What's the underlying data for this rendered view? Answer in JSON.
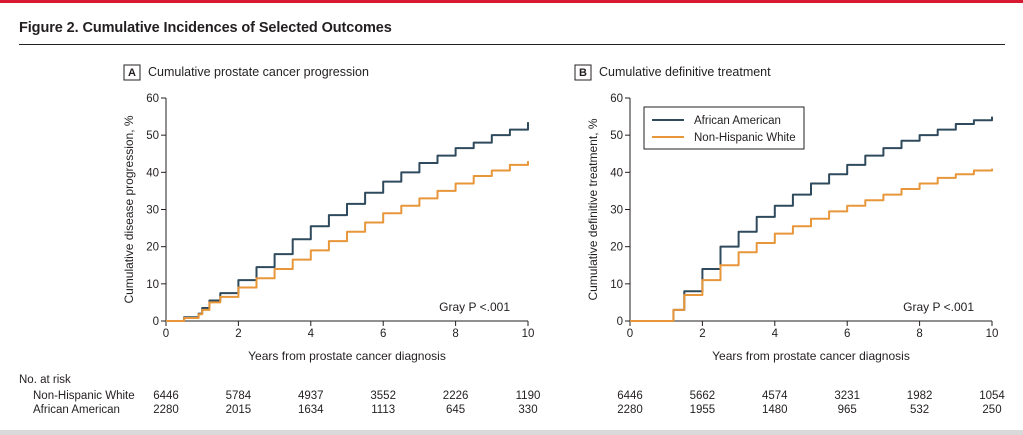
{
  "figure_title": "Figure 2. Cumulative Incidences of Selected Outcomes",
  "risk_table": {
    "header": "No. at risk",
    "rows": [
      "Non-Hispanic White",
      "African American"
    ]
  },
  "chart_data": [
    {
      "type": "line",
      "panel_letter": "A",
      "title": "Cumulative prostate cancer progression",
      "xlabel": "Years from prostate cancer diagnosis",
      "ylabel": "Cumulative disease progression, %",
      "xlim": [
        0,
        10
      ],
      "ylim": [
        0,
        60
      ],
      "x_ticks": [
        0,
        2,
        4,
        6,
        8,
        10
      ],
      "y_ticks": [
        0,
        10,
        20,
        30,
        40,
        50,
        60
      ],
      "annotation": "Gray P <.001",
      "legend": false,
      "series": [
        {
          "name": "African American",
          "color": "#2e4a5c",
          "x": [
            0,
            0.5,
            0.9,
            1.0,
            1.2,
            1.5,
            2.0,
            2.5,
            3.0,
            3.5,
            4.0,
            4.5,
            5.0,
            5.5,
            6.0,
            6.5,
            7.0,
            7.5,
            8.0,
            8.5,
            9.0,
            9.5,
            10.0
          ],
          "y": [
            0,
            1.0,
            2.0,
            3.5,
            5.5,
            7.5,
            11,
            14.5,
            18,
            22,
            25.5,
            28.5,
            31.5,
            34.5,
            37.5,
            40,
            42.5,
            44.5,
            46.5,
            48,
            50,
            51.5,
            53.5
          ]
        },
        {
          "name": "Non-Hispanic White",
          "color": "#e8963a",
          "x": [
            0,
            0.5,
            0.9,
            1.0,
            1.2,
            1.5,
            2.0,
            2.5,
            3.0,
            3.5,
            4.0,
            4.5,
            5.0,
            5.5,
            6.0,
            6.5,
            7.0,
            7.5,
            8.0,
            8.5,
            9.0,
            9.5,
            10.0
          ],
          "y": [
            0,
            0.8,
            1.8,
            3.0,
            5.0,
            6.5,
            9.0,
            11.5,
            14,
            16.5,
            19,
            21.5,
            24,
            26.5,
            29,
            31,
            33,
            35,
            37,
            39,
            40.5,
            42,
            43
          ]
        }
      ],
      "at_risk": {
        "Non-Hispanic White": [
          6446,
          5784,
          4937,
          3552,
          2226,
          1190
        ],
        "African American": [
          2280,
          2015,
          1634,
          1113,
          645,
          330
        ]
      }
    },
    {
      "type": "line",
      "panel_letter": "B",
      "title": "Cumulative definitive treatment",
      "xlabel": "Years from prostate cancer diagnosis",
      "ylabel": "Cumulative definitive treatment, %",
      "xlim": [
        0,
        10
      ],
      "ylim": [
        0,
        60
      ],
      "x_ticks": [
        0,
        2,
        4,
        6,
        8,
        10
      ],
      "y_ticks": [
        0,
        10,
        20,
        30,
        40,
        50,
        60
      ],
      "annotation": "Gray P <.001",
      "legend": true,
      "legend_position": "top-left",
      "series": [
        {
          "name": "African American",
          "color": "#2e4a5c",
          "x": [
            0,
            1.0,
            1.2,
            1.5,
            2.0,
            2.5,
            3.0,
            3.5,
            4.0,
            4.5,
            5.0,
            5.5,
            6.0,
            6.5,
            7.0,
            7.5,
            8.0,
            8.5,
            9.0,
            9.5,
            10.0
          ],
          "y": [
            0,
            0,
            3,
            8,
            14,
            20,
            24,
            28,
            31,
            34,
            37,
            39.5,
            42,
            44.5,
            46.5,
            48.5,
            50,
            51.5,
            53,
            54,
            55
          ]
        },
        {
          "name": "Non-Hispanic White",
          "color": "#e8963a",
          "x": [
            0,
            1.0,
            1.2,
            1.5,
            2.0,
            2.5,
            3.0,
            3.5,
            4.0,
            4.5,
            5.0,
            5.5,
            6.0,
            6.5,
            7.0,
            7.5,
            8.0,
            8.5,
            9.0,
            9.5,
            10.0
          ],
          "y": [
            0,
            0,
            3,
            7,
            11,
            15,
            18.5,
            21,
            23.5,
            25.5,
            27.5,
            29.5,
            31,
            32.5,
            34,
            35.5,
            37,
            38.5,
            39.5,
            40.5,
            41
          ]
        }
      ],
      "at_risk": {
        "Non-Hispanic White": [
          6446,
          5662,
          4574,
          3231,
          1982,
          1054
        ],
        "African American": [
          2280,
          1955,
          1480,
          965,
          532,
          250
        ]
      }
    }
  ]
}
